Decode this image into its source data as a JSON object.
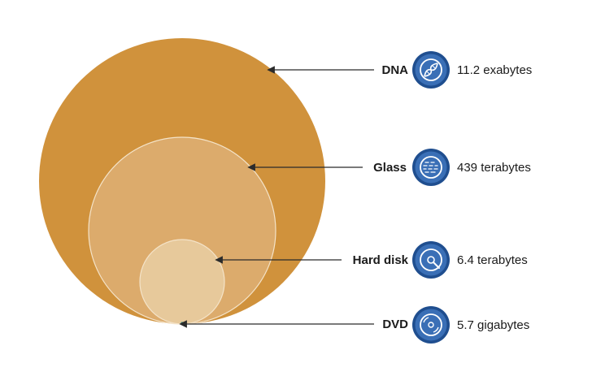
{
  "colors": {
    "dna_circle": "#d0923c",
    "glass_circle": "#dcab6c",
    "hard_disk_circle": "#e7c99b",
    "circle_outline": "#f4e3c8",
    "dvd_marker": "#4f9a8c",
    "icon_fill": "#3a6fb6",
    "icon_ring": "#1f4e8f",
    "arrow": "#2b2b2b"
  },
  "items": [
    {
      "label": "DNA",
      "capacity": "11.2 exabytes",
      "icon": "dna-icon"
    },
    {
      "label": "Glass",
      "capacity": "439 terabytes",
      "icon": "glass-icon"
    },
    {
      "label": "Hard disk",
      "capacity": "6.4 terabytes",
      "icon": "hard-disk-icon"
    },
    {
      "label": "DVD",
      "capacity": "5.7 gigabytes",
      "icon": "dvd-icon"
    }
  ]
}
